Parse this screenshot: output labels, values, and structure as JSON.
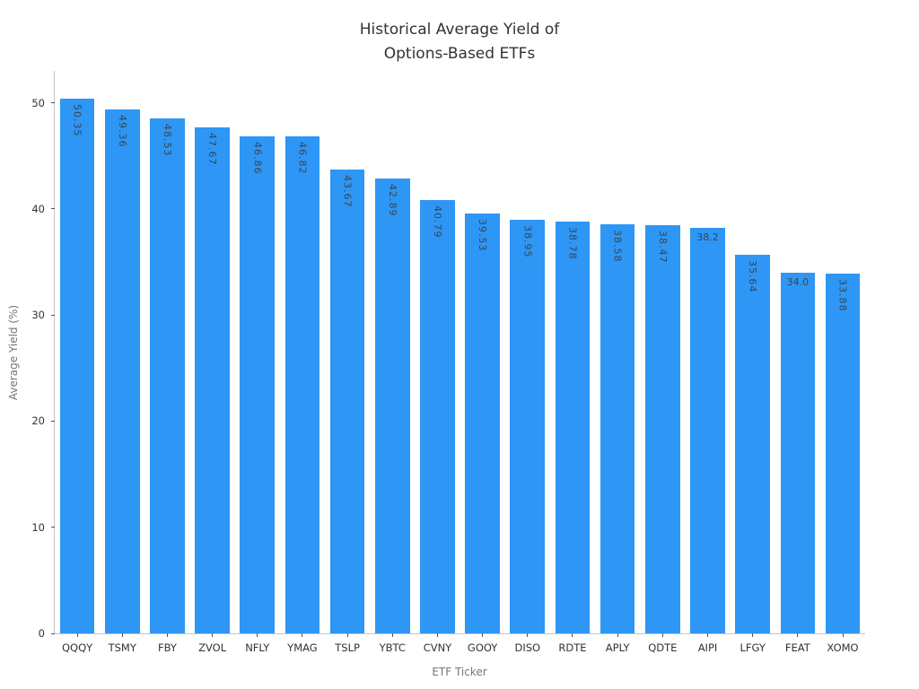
{
  "title_lines": [
    "Historical Average Yield of",
    "Options-Based ETFs"
  ],
  "axis": {
    "xlabel": "ETF Ticker",
    "ylabel": "Average Yield (%)"
  },
  "colors": {
    "bar": "#2e96f5",
    "bar_label": "#37474f",
    "spine": "#c6c6c6",
    "tick": "#555555",
    "tick_label": "#333333",
    "axis_label": "#757575",
    "title": "#333333",
    "background": "#ffffff"
  },
  "chart_data": {
    "type": "bar",
    "title": "Historical Average Yield of\nOptions-Based ETFs",
    "xlabel": "ETF Ticker",
    "ylabel": "Average Yield (%)",
    "categories": [
      "QQQY",
      "TSMY",
      "FBY",
      "ZVOL",
      "NFLY",
      "YMAG",
      "TSLP",
      "YBTC",
      "CVNY",
      "GOOY",
      "DISO",
      "RDTE",
      "APLY",
      "QDTE",
      "AIPI",
      "LFGY",
      "FEAT",
      "XOMO"
    ],
    "values": [
      50.35,
      49.36,
      48.53,
      47.67,
      46.86,
      46.82,
      43.67,
      42.89,
      40.79,
      39.53,
      38.95,
      38.78,
      38.58,
      38.47,
      38.2,
      35.64,
      34.0,
      33.88
    ],
    "value_labels": [
      "50.35",
      "49.36",
      "48.53",
      "47.67",
      "46.86",
      "46.82",
      "43.67",
      "42.89",
      "40.79",
      "39.53",
      "38.95",
      "38.78",
      "38.58",
      "38.47",
      "38.2",
      "35.64",
      "34.0",
      "33.88"
    ],
    "yticks": [
      0,
      10,
      20,
      30,
      40,
      50
    ],
    "ylim": [
      0,
      53
    ],
    "grid": false,
    "legend": null,
    "bar_color": "#2e96f5",
    "value_label_color": "#37474f"
  }
}
